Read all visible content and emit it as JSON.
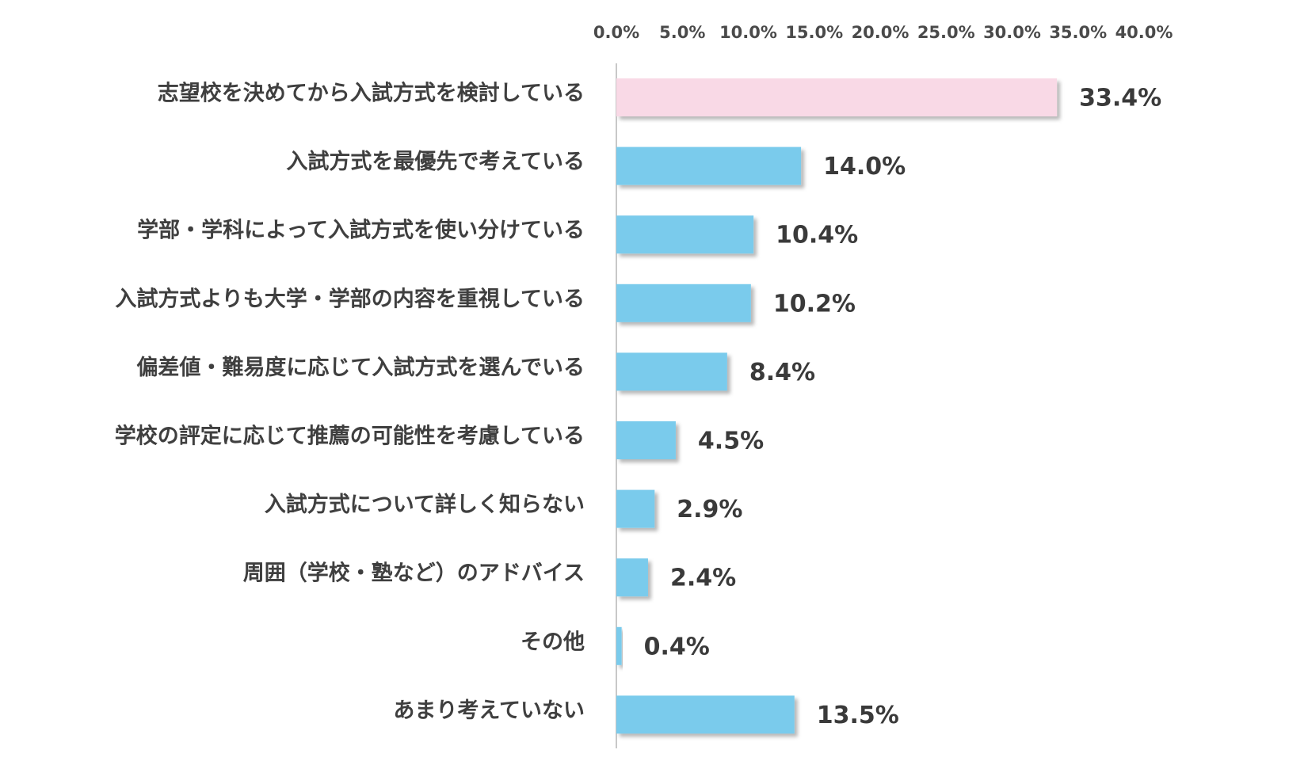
{
  "chart_data": {
    "type": "bar",
    "orientation": "horizontal",
    "title": "",
    "xlabel": "",
    "ylabel": "",
    "xlim": [
      0,
      40
    ],
    "tick_values": [
      0,
      5,
      10,
      15,
      20,
      25,
      30,
      35,
      40
    ],
    "tick_labels": [
      "0.0%",
      "5.0%",
      "10.0%",
      "15.0%",
      "20.0%",
      "25.0%",
      "30.0%",
      "35.0%",
      "40.0%"
    ],
    "axis_position": "top",
    "grid": false,
    "legend": "none",
    "categories": [
      "志望校を決めてから入試方式を検討している",
      "入試方式を最優先で考えている",
      "学部・学科によって入試方式を使い分けている",
      "入試方式よりも大学・学部の内容を重視している",
      "偏差値・難易度に応じて入試方式を選んでいる",
      "学校の評定に応じて推薦の可能性を考慮している",
      "入試方式について詳しく知らない",
      "周囲（学校・塾など）のアドバイス",
      "その他",
      "あまり考えていない"
    ],
    "values": [
      33.4,
      14.0,
      10.4,
      10.2,
      8.4,
      4.5,
      2.9,
      2.4,
      0.4,
      13.5
    ],
    "value_labels": [
      "33.4%",
      "14.0%",
      "10.4%",
      "10.2%",
      "8.4%",
      "4.5%",
      "2.9%",
      "2.4%",
      "0.4%",
      "13.5%"
    ],
    "bar_colors": [
      "#f9d9e6",
      "#7acbec",
      "#7acbec",
      "#7acbec",
      "#7acbec",
      "#7acbec",
      "#7acbec",
      "#7acbec",
      "#7acbec",
      "#7acbec"
    ],
    "highlight_color": "#f9d9e6",
    "bar_color": "#7acbec",
    "axis_line_color": "#c8c8c8"
  }
}
